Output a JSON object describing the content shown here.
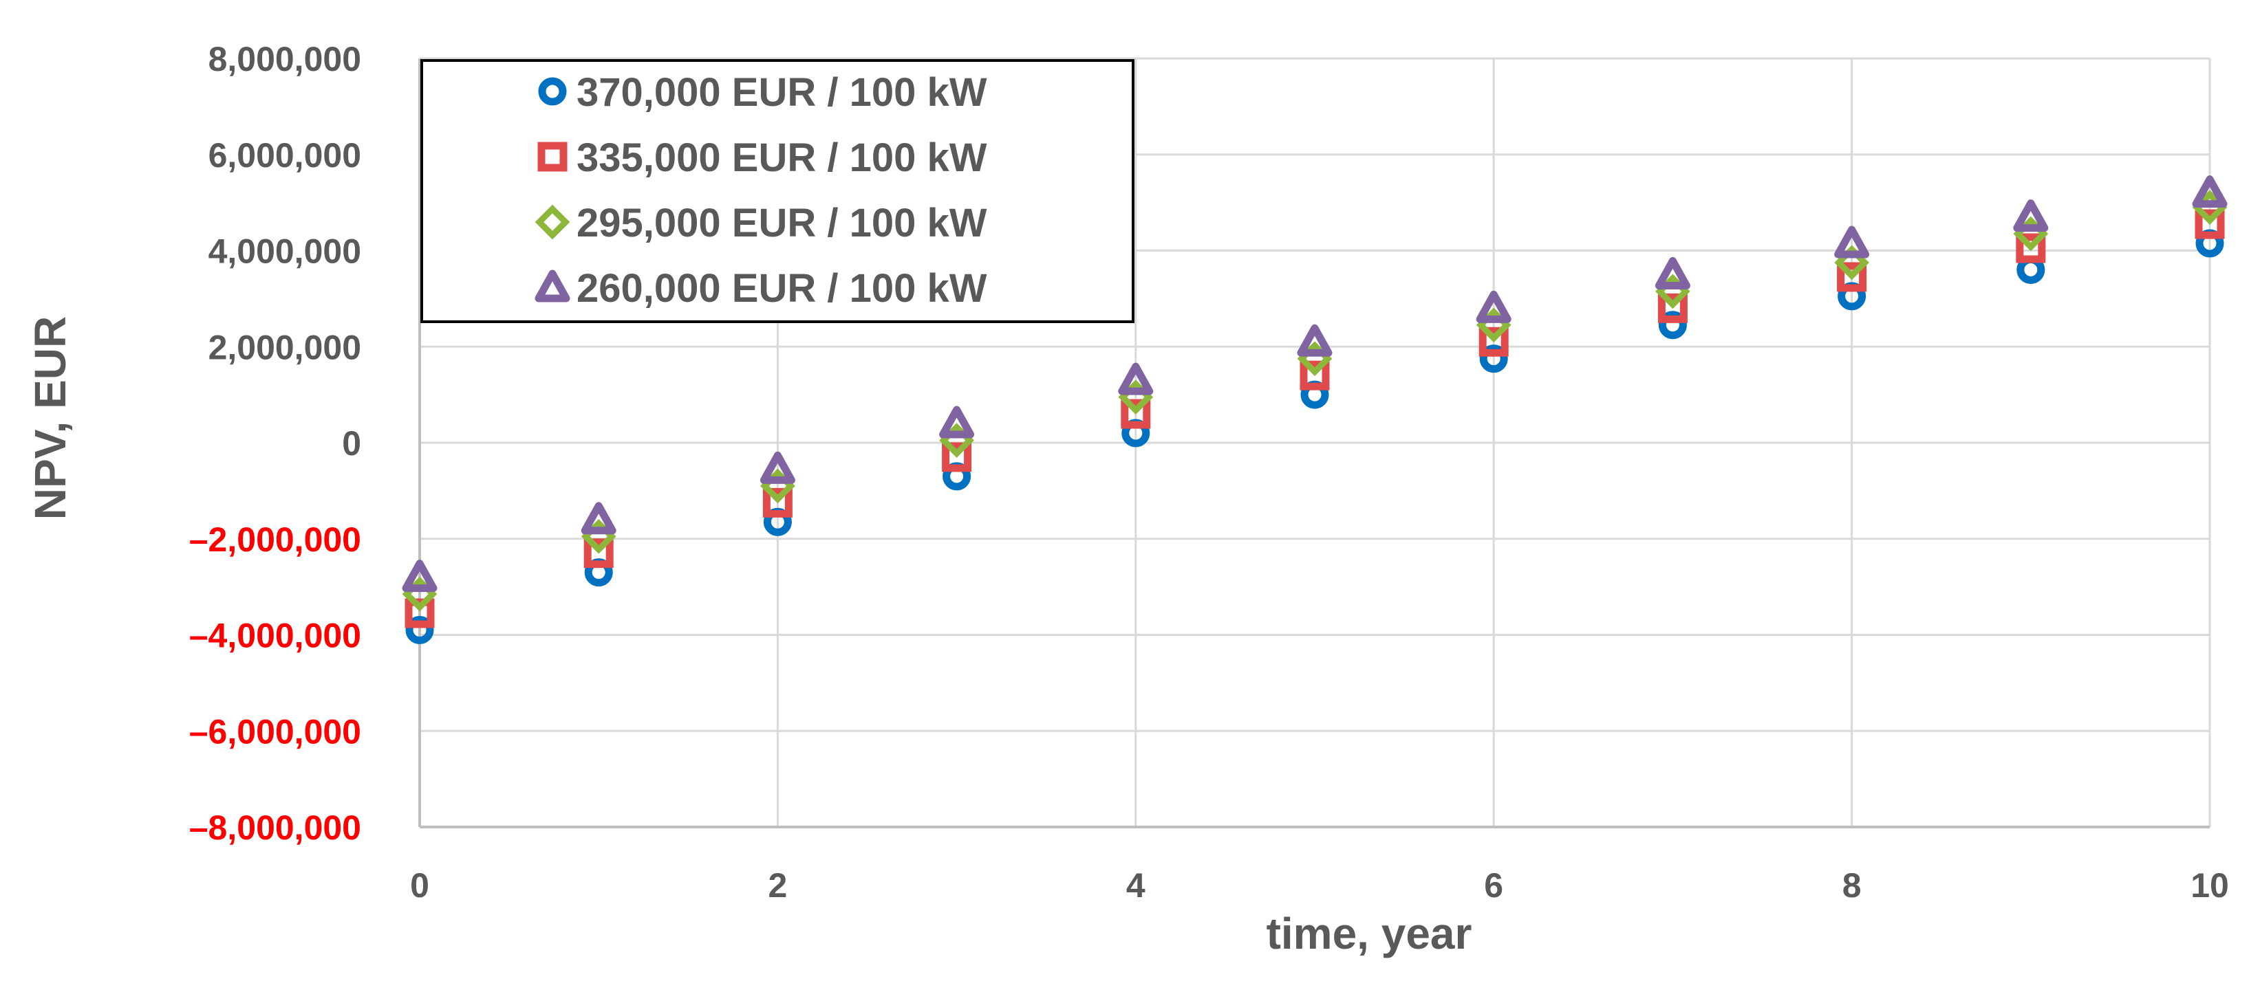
{
  "chart_data": {
    "type": "scatter",
    "title": "",
    "xlabel": "time, year",
    "ylabel": "NPV, EUR",
    "xlim": [
      0,
      10
    ],
    "ylim": [
      -8000000,
      8000000
    ],
    "x_ticks": [
      "0",
      "2",
      "4",
      "6",
      "8",
      "10"
    ],
    "y_ticks": [
      "8,000,000",
      "6,000,000",
      "4,000,000",
      "2,000,000",
      "0",
      "–2,000,000",
      "–4,000,000",
      "–6,000,000",
      "–8,000,000"
    ],
    "grid": true,
    "legend_position": "top-left",
    "x": [
      0,
      1,
      2,
      3,
      4,
      5,
      6,
      7,
      8,
      9,
      10
    ],
    "series": [
      {
        "name": "370,000 EUR / 100 kW",
        "marker": "circle",
        "color": "#0070C0",
        "values": [
          -3900000,
          -2700000,
          -1650000,
          -700000,
          200000,
          1000000,
          1750000,
          2450000,
          3050000,
          3600000,
          4150000
        ]
      },
      {
        "name": "335,000 EUR / 100 kW",
        "marker": "square",
        "color": "#E04A4A",
        "values": [
          -3550000,
          -2300000,
          -1250000,
          -300000,
          600000,
          1400000,
          2100000,
          2800000,
          3450000,
          4050000,
          4550000
        ]
      },
      {
        "name": "295,000 EUR / 100 kW",
        "marker": "diamond",
        "color": "#8DB73B",
        "values": [
          -3150000,
          -1950000,
          -900000,
          50000,
          950000,
          1750000,
          2450000,
          3150000,
          3750000,
          4350000,
          4900000
        ]
      },
      {
        "name": "260,000 EUR / 100 kW",
        "marker": "triangle",
        "color": "#8064A2",
        "values": [
          -2800000,
          -1600000,
          -550000,
          400000,
          1300000,
          2100000,
          2800000,
          3500000,
          4150000,
          4700000,
          5200000
        ]
      }
    ],
    "colors": {
      "axis_text": "#595959",
      "negative_tick": "#FF0000",
      "grid": "#D9D9D9"
    }
  }
}
